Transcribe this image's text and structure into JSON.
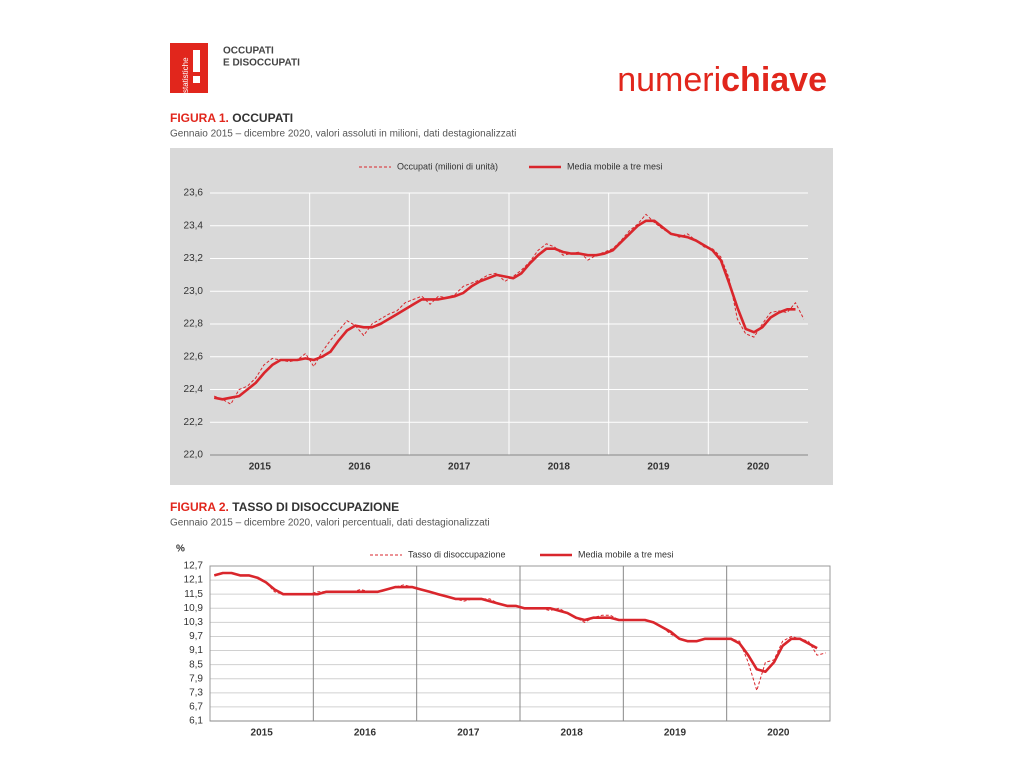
{
  "header": {
    "logo_text": "statistiche",
    "title_lines": [
      "OCCUPATI",
      "E DISOCCUPATI"
    ],
    "brand_light": "numeri",
    "brand_bold": "chiave"
  },
  "chart_data": [
    {
      "type": "line",
      "figure_label": "FIGURA 1.",
      "title": "OCCUPATI",
      "subtitle": "Gennaio 2015 – dicembre 2020, valori assoluti in milioni, dati destagionalizzati",
      "categories": [
        null,
        null,
        null,
        null,
        null,
        null,
        "2015",
        null,
        null,
        null,
        null,
        null,
        null,
        null,
        null,
        null,
        null,
        null,
        "2016",
        null,
        null,
        null,
        null,
        null,
        null,
        null,
        null,
        null,
        null,
        null,
        "2017",
        null,
        null,
        null,
        null,
        null,
        null,
        null,
        null,
        null,
        null,
        null,
        "2018",
        null,
        null,
        null,
        null,
        null,
        null,
        null,
        null,
        null,
        null,
        null,
        "2019",
        null,
        null,
        null,
        null,
        null,
        null,
        null,
        null,
        null,
        null,
        null,
        "2020",
        null,
        null,
        null,
        null,
        null
      ],
      "ylim": [
        22.0,
        23.6
      ],
      "yticks": [
        {
          "value": 22.0,
          "label": "22,0"
        },
        {
          "value": 22.2,
          "label": "22,2"
        },
        {
          "value": 22.4,
          "label": "22,4"
        },
        {
          "value": 22.6,
          "label": "22,6"
        },
        {
          "value": 22.8,
          "label": "22,8"
        },
        {
          "value": 23.0,
          "label": "23,0"
        },
        {
          "value": 23.2,
          "label": "23,2"
        },
        {
          "value": 23.4,
          "label": "23,4"
        },
        {
          "value": 23.6,
          "label": "23,6"
        }
      ],
      "grid": true,
      "legend": "top",
      "background": "#d9d9d9",
      "grid_color": "#ffffff",
      "series": [
        {
          "name": "Occupati (milioni di unità)",
          "color": "#d9262c",
          "style": "dashed",
          "values": [
            22.36,
            22.34,
            22.31,
            22.4,
            22.42,
            22.47,
            22.55,
            22.59,
            22.58,
            22.57,
            22.58,
            22.62,
            22.54,
            22.63,
            22.7,
            22.76,
            22.82,
            22.79,
            22.73,
            22.8,
            22.83,
            22.86,
            22.88,
            22.93,
            22.95,
            22.97,
            22.92,
            22.97,
            22.96,
            22.98,
            23.03,
            23.05,
            23.07,
            23.1,
            23.11,
            23.06,
            23.09,
            23.13,
            23.18,
            23.25,
            23.29,
            23.27,
            23.22,
            23.23,
            23.24,
            23.19,
            23.22,
            23.24,
            23.26,
            23.31,
            23.37,
            23.41,
            23.47,
            23.42,
            23.38,
            23.35,
            23.33,
            23.35,
            23.31,
            23.27,
            23.26,
            23.21,
            23.08,
            22.83,
            22.74,
            22.72,
            22.8,
            22.87,
            22.88,
            22.87,
            22.93,
            22.83
          ]
        },
        {
          "name": "Media mobile a tre mesi",
          "color": "#d9262c",
          "style": "solid",
          "values": [
            22.35,
            22.34,
            22.35,
            22.36,
            22.4,
            22.44,
            22.5,
            22.55,
            22.58,
            22.58,
            22.58,
            22.59,
            22.58,
            22.6,
            22.63,
            22.7,
            22.76,
            22.79,
            22.78,
            22.78,
            22.8,
            22.83,
            22.86,
            22.89,
            22.92,
            22.95,
            22.95,
            22.95,
            22.96,
            22.97,
            22.99,
            23.03,
            23.06,
            23.08,
            23.1,
            23.09,
            23.08,
            23.11,
            23.17,
            23.22,
            23.26,
            23.26,
            23.24,
            23.23,
            23.23,
            23.22,
            23.22,
            23.23,
            23.25,
            23.3,
            23.35,
            23.4,
            23.43,
            23.43,
            23.39,
            23.35,
            23.34,
            23.33,
            23.31,
            23.28,
            23.25,
            23.19,
            23.05,
            22.9,
            22.77,
            22.75,
            22.78,
            22.84,
            22.87,
            22.89,
            22.89,
            null
          ]
        }
      ]
    },
    {
      "type": "line",
      "figure_label": "FIGURA 2.",
      "title": "TASSO DI DISOCCUPAZIONE",
      "subtitle": "Gennaio 2015 – dicembre 2020, valori percentuali, dati destagionalizzati",
      "y_unit": "%",
      "categories": [
        null,
        null,
        null,
        null,
        null,
        null,
        "2015",
        null,
        null,
        null,
        null,
        null,
        null,
        null,
        null,
        null,
        null,
        null,
        "2016",
        null,
        null,
        null,
        null,
        null,
        null,
        null,
        null,
        null,
        null,
        null,
        "2017",
        null,
        null,
        null,
        null,
        null,
        null,
        null,
        null,
        null,
        null,
        null,
        "2018",
        null,
        null,
        null,
        null,
        null,
        null,
        null,
        null,
        null,
        null,
        null,
        "2019",
        null,
        null,
        null,
        null,
        null,
        null,
        null,
        null,
        null,
        null,
        null,
        "2020",
        null,
        null,
        null,
        null,
        null
      ],
      "ylim": [
        6.1,
        12.7
      ],
      "yticks": [
        {
          "value": 6.1,
          "label": "6,1"
        },
        {
          "value": 6.7,
          "label": "6,7"
        },
        {
          "value": 7.3,
          "label": "7,3"
        },
        {
          "value": 7.9,
          "label": "7,9"
        },
        {
          "value": 8.5,
          "label": "8,5"
        },
        {
          "value": 9.1,
          "label": "9,1"
        },
        {
          "value": 9.7,
          "label": "9,7"
        },
        {
          "value": 10.3,
          "label": "10,3"
        },
        {
          "value": 10.9,
          "label": "10,9"
        },
        {
          "value": 11.5,
          "label": "11,5"
        },
        {
          "value": 12.1,
          "label": "12,1"
        },
        {
          "value": 12.7,
          "label": "12,7"
        }
      ],
      "grid": true,
      "legend": "top",
      "background": "#ffffff",
      "grid_color": "#d0d0d0",
      "series": [
        {
          "name": "Tasso di disoccupazione",
          "color": "#d9262c",
          "style": "dashed",
          "values": [
            12.3,
            12.4,
            12.4,
            12.3,
            12.3,
            12.2,
            12.0,
            11.6,
            11.5,
            11.5,
            11.5,
            11.5,
            11.6,
            11.6,
            11.6,
            11.6,
            11.6,
            11.7,
            11.6,
            11.6,
            11.7,
            11.8,
            11.9,
            11.8,
            11.7,
            11.6,
            11.5,
            11.4,
            11.3,
            11.2,
            11.3,
            11.3,
            11.3,
            11.1,
            11.0,
            11.0,
            10.9,
            10.9,
            10.9,
            10.8,
            10.9,
            10.7,
            10.5,
            10.3,
            10.5,
            10.6,
            10.6,
            10.4,
            10.4,
            10.4,
            10.4,
            10.3,
            10.1,
            9.8,
            9.6,
            9.5,
            9.5,
            9.6,
            9.6,
            9.6,
            9.6,
            9.5,
            8.6,
            7.4,
            8.6,
            8.7,
            9.5,
            9.7,
            9.6,
            9.5,
            8.9,
            9.0
          ]
        },
        {
          "name": "Media mobile a tre mesi",
          "color": "#d9262c",
          "style": "solid",
          "values": [
            12.3,
            12.4,
            12.4,
            12.3,
            12.3,
            12.2,
            12.0,
            11.7,
            11.5,
            11.5,
            11.5,
            11.5,
            11.5,
            11.6,
            11.6,
            11.6,
            11.6,
            11.6,
            11.6,
            11.6,
            11.7,
            11.8,
            11.8,
            11.8,
            11.7,
            11.6,
            11.5,
            11.4,
            11.3,
            11.3,
            11.3,
            11.3,
            11.2,
            11.1,
            11.0,
            11.0,
            10.9,
            10.9,
            10.9,
            10.9,
            10.8,
            10.7,
            10.5,
            10.4,
            10.5,
            10.5,
            10.5,
            10.4,
            10.4,
            10.4,
            10.4,
            10.3,
            10.1,
            9.9,
            9.6,
            9.5,
            9.5,
            9.6,
            9.6,
            9.6,
            9.6,
            9.4,
            8.9,
            8.3,
            8.2,
            8.6,
            9.3,
            9.6,
            9.6,
            9.4,
            9.2,
            null
          ]
        }
      ]
    }
  ]
}
